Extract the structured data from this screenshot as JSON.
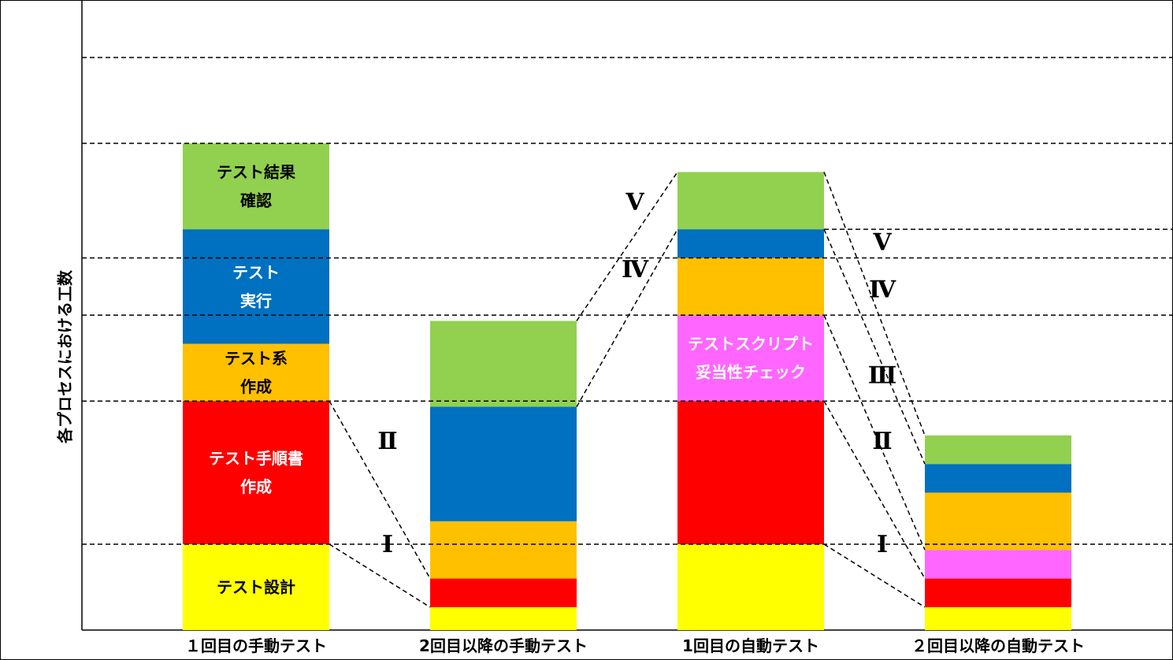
{
  "chart_data": {
    "type": "bar",
    "subtype": "stacked",
    "ylabel": "各プロセスにおける工数",
    "categories": [
      "１回目の手動テスト",
      "2回目以降の手動テスト",
      "1回目の自動テスト",
      "２回目以降の自動テスト"
    ],
    "ylim": [
      0,
      100
    ],
    "grid": false,
    "legend": "none",
    "series": [
      {
        "name": "",
        "label_lines": [
          "テスト設計"
        ],
        "color": "#ffff00",
        "text_color": "#000000",
        "values": [
          15,
          4,
          15,
          4
        ]
      },
      {
        "name": "",
        "label_lines": [
          "テスト手順書",
          "作成"
        ],
        "color": "#ff0000",
        "text_color": "#ffffff",
        "values": [
          25,
          5,
          25,
          5
        ]
      },
      {
        "name": "",
        "label_lines": [
          "テストスクリプト",
          "妥当性チェック"
        ],
        "color": "#ff66ff",
        "text_color": "#ffffff",
        "label_index": 2,
        "values": [
          0,
          0,
          15,
          5
        ]
      },
      {
        "name": "",
        "label_lines": [
          "テスト系",
          "作成"
        ],
        "color": "#ffc000",
        "text_color": "#000000",
        "values": [
          10,
          10,
          10,
          10
        ]
      },
      {
        "name": "",
        "label_lines": [
          "テスト",
          "実行"
        ],
        "color": "#0070c0",
        "text_color": "#ffffff",
        "values": [
          20,
          20,
          5,
          5
        ]
      },
      {
        "name": "",
        "label_lines": [
          "テスト結果",
          "確認"
        ],
        "color": "#92d050",
        "text_color": "#000000",
        "values": [
          15,
          15,
          10,
          5
        ]
      }
    ],
    "reference_lines_y": [
      15,
      40,
      55,
      65,
      85,
      100,
      70
    ],
    "annotations": [
      {
        "text": "Ⅰ",
        "series": 0,
        "between": [
          0,
          1
        ]
      },
      {
        "text": "Ⅰ",
        "series": 0,
        "between": [
          2,
          3
        ]
      },
      {
        "text": "Ⅱ",
        "series": 1,
        "between": [
          0,
          1
        ]
      },
      {
        "text": "Ⅱ",
        "series": 1,
        "between": [
          2,
          3
        ]
      },
      {
        "text": "Ⅲ",
        "series": 2,
        "between": [
          2,
          3
        ]
      },
      {
        "text": "Ⅳ",
        "series": 4,
        "between": [
          1,
          2
        ]
      },
      {
        "text": "Ⅳ",
        "series": 4,
        "between": [
          2,
          3
        ]
      },
      {
        "text": "Ⅴ",
        "series": 5,
        "between": [
          1,
          2
        ]
      },
      {
        "text": "Ⅴ",
        "series": 5,
        "between": [
          2,
          3
        ]
      }
    ]
  }
}
